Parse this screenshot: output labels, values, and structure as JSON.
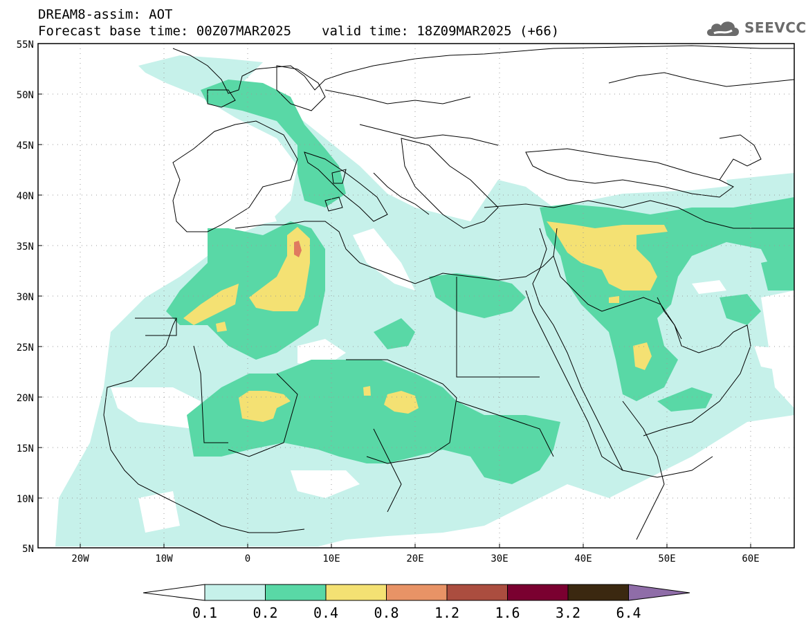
{
  "header": {
    "model": "DREAM8-assim: AOT",
    "base_time": "Forecast base time: 00Z07MAR2025",
    "valid_time": "valid time: 18Z09MAR2025 (+66)"
  },
  "logo": {
    "text": "SEEVCCC",
    "icon": "cloud-logo-icon"
  },
  "map": {
    "lat_labels": [
      "55N",
      "50N",
      "45N",
      "40N",
      "35N",
      "30N",
      "25N",
      "20N",
      "15N",
      "10N",
      "5N"
    ],
    "lon_labels": [
      "20W",
      "10W",
      "0",
      "10E",
      "20E",
      "30E",
      "40E",
      "50E",
      "60E"
    ],
    "lon_range": [
      -25,
      65
    ],
    "lat_range": [
      5,
      55
    ],
    "grid": "dotted"
  },
  "colorbar": {
    "levels": [
      "0.1",
      "0.2",
      "0.4",
      "0.8",
      "1.2",
      "1.6",
      "3.2",
      "6.4"
    ],
    "colors": [
      "#ffffff",
      "#c6f1ea",
      "#59d8a6",
      "#f4e173",
      "#e89366",
      "#ab4d3f",
      "#7a0030",
      "#3b2810",
      "#8f6da8"
    ]
  },
  "colors": {
    "level1": "#c6f1ea",
    "level2": "#59d8a6",
    "level3": "#f4e173",
    "level4": "#e89366",
    "level5": "#ab4d3f"
  }
}
